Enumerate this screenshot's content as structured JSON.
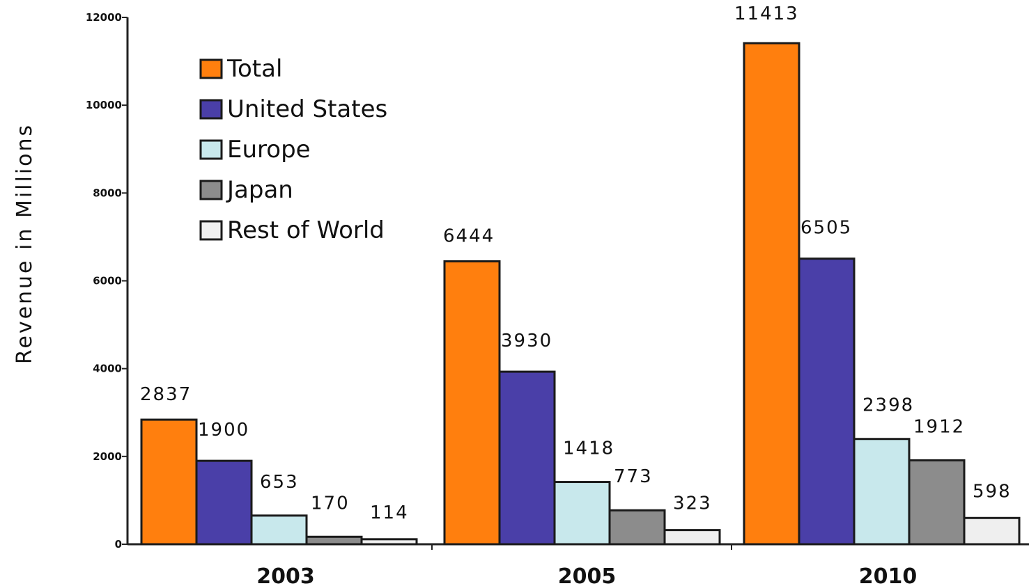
{
  "chart_data": {
    "type": "bar",
    "categories": [
      "2003",
      "2005",
      "2010"
    ],
    "series": [
      {
        "name": "Total",
        "color": "#ff7f0e",
        "values": [
          2837,
          6444,
          11413
        ]
      },
      {
        "name": "United States",
        "color": "#4a3fa8",
        "values": [
          1900,
          3930,
          6505
        ]
      },
      {
        "name": "Europe",
        "color": "#c8e8ec",
        "values": [
          653,
          1418,
          2398
        ]
      },
      {
        "name": "Japan",
        "color": "#8c8c8c",
        "values": [
          170,
          773,
          1912
        ]
      },
      {
        "name": "Rest of World",
        "color": "#efefef",
        "values": [
          114,
          323,
          598
        ]
      }
    ],
    "ylabel": "Revenue in Millions",
    "ylim": [
      0,
      12000
    ],
    "yticks": [
      "0",
      "2000",
      "4000",
      "6000",
      "8000",
      "10000",
      "12000"
    ],
    "legend": "top-left",
    "grid": false
  }
}
